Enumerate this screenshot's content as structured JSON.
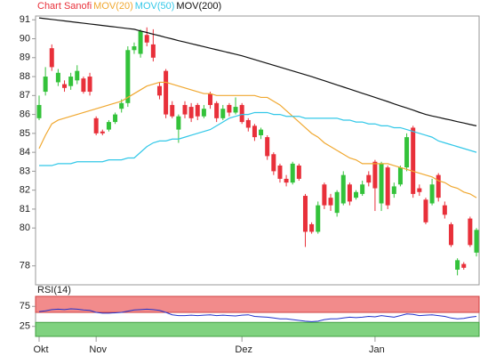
{
  "chart_data": {
    "type": "candlestick",
    "title": "Chart Sanofi",
    "categories": [
      "Okt",
      null,
      null,
      null,
      null,
      null,
      null,
      null,
      null,
      "Nov",
      null,
      null,
      null,
      null,
      null,
      null,
      null,
      null,
      null,
      null,
      null,
      null,
      null,
      null,
      null,
      null,
      null,
      null,
      null,
      null,
      null,
      null,
      "Dez",
      null,
      null,
      null,
      null,
      null,
      null,
      null,
      null,
      null,
      null,
      null,
      null,
      null,
      null,
      null,
      null,
      null,
      null,
      null,
      null,
      "Jan",
      null,
      null,
      null,
      null,
      null,
      null,
      null,
      null,
      null,
      null,
      null,
      null,
      null,
      null,
      null,
      null
    ],
    "open": [
      85.8,
      87.2,
      89.5,
      87.7,
      87.6,
      87.5,
      87.8,
      87.9,
      88,
      85.8,
      85.1,
      85.2,
      85.6,
      86.3,
      86.6,
      89.4,
      89.2,
      90.2,
      89.7,
      87.5,
      88.3,
      86.5,
      85.2,
      86.5,
      86.4,
      86.5,
      85.9,
      87.1,
      86.6,
      85.8,
      86.5,
      86.1,
      86.5,
      85.7,
      85.4,
      84.9,
      84.8,
      83.9,
      83.3,
      82.6,
      82.4,
      83.3,
      81.7,
      80.2,
      79.8,
      82.3,
      81.6,
      80.8,
      81.3,
      82.3,
      81.6,
      81.8,
      82.8,
      83.5,
      81.3,
      83.2,
      81.8,
      82.3,
      83.2,
      85.3,
      82.1,
      81.5,
      81.3,
      82.8,
      81.2,
      80.2,
      77.8,
      78.1,
      80.5,
      78.7
    ],
    "high": [
      87,
      88.5,
      89.7,
      88.4,
      87.8,
      88.2,
      88.6,
      88,
      88.2,
      85.9,
      85.2,
      85.7,
      86.1,
      86.8,
      89.6,
      89.8,
      90.5,
      90.6,
      90.5,
      87.7,
      88.4,
      86.7,
      86,
      86.7,
      86.6,
      86.6,
      86.5,
      87.2,
      86.7,
      86.5,
      86.6,
      86.9,
      86.6,
      85.8,
      85.5,
      85.3,
      84.9,
      84,
      83.4,
      82.8,
      83.5,
      83.4,
      81.8,
      80.3,
      81.4,
      82.4,
      81.8,
      82,
      83,
      82.4,
      82,
      82.5,
      83,
      83.6,
      83.5,
      83.3,
      82.4,
      83.3,
      85,
      85.4,
      82.3,
      81.6,
      82.6,
      82.9,
      81.4,
      80.3,
      78.4,
      78.2,
      80.6,
      80
    ],
    "low": [
      85.7,
      87,
      88.3,
      87.5,
      87.2,
      87.3,
      87.6,
      87.1,
      87,
      84.9,
      84.9,
      85.1,
      85.5,
      86.1,
      86.4,
      89.2,
      89,
      89.6,
      88.8,
      86.8,
      85.8,
      85.8,
      84.5,
      85.8,
      85.6,
      85.7,
      85.8,
      86.3,
      85.6,
      85.7,
      85.9,
      86,
      85.5,
      85.1,
      84.6,
      84.7,
      83.6,
      82.8,
      82.4,
      82.2,
      82.3,
      82.5,
      79,
      79.7,
      79.7,
      81,
      80.9,
      80.6,
      81.2,
      81.2,
      81.5,
      81.7,
      82.2,
      80.9,
      80.9,
      81,
      81.6,
      82.2,
      83,
      81.6,
      81.7,
      80.2,
      81.2,
      81.4,
      80.5,
      79,
      77.5,
      77.8,
      79,
      78.5
    ],
    "close": [
      86.5,
      88,
      88.5,
      88.2,
      87.4,
      88,
      88.3,
      87.2,
      87.2,
      85,
      85,
      85.6,
      86,
      86.6,
      89.4,
      89.6,
      90.4,
      89.8,
      89,
      87,
      86,
      85.9,
      85.9,
      86,
      85.8,
      85.9,
      86.3,
      86.5,
      85.8,
      86.3,
      86.1,
      86.4,
      85.6,
      85.3,
      84.8,
      85.2,
      83.8,
      83,
      82.6,
      82.4,
      83.4,
      82.6,
      79.8,
      79.8,
      81.2,
      81.2,
      81.2,
      81.9,
      82.8,
      81.4,
      81.9,
      82.3,
      82.4,
      82.1,
      83.4,
      81.2,
      82.2,
      83.2,
      84.8,
      81.8,
      81.9,
      80.3,
      82.3,
      81.6,
      80.7,
      79.1,
      78.3,
      77.9,
      79.1,
      79.9
    ],
    "up_color": "#33c23a",
    "down_color": "#e8303a",
    "series": [
      {
        "name": "MOV(20)",
        "color": "#f0a830",
        "values": [
          84.2,
          84.9,
          85.5,
          85.7,
          85.8,
          85.9,
          86.0,
          86.1,
          86.2,
          86.3,
          86.4,
          86.5,
          86.6,
          86.7,
          86.9,
          87.1,
          87.3,
          87.5,
          87.6,
          87.7,
          87.7,
          87.6,
          87.5,
          87.4,
          87.3,
          87.2,
          87.1,
          87.1,
          87.0,
          87.0,
          87.0,
          87.0,
          87.0,
          87.0,
          87.0,
          86.9,
          86.9,
          86.7,
          86.5,
          86.2,
          85.9,
          85.6,
          85.3,
          85.0,
          84.8,
          84.5,
          84.3,
          84.1,
          83.9,
          83.7,
          83.6,
          83.4,
          83.4,
          83.4,
          83.4,
          83.4,
          83.3,
          83.2,
          83.1,
          83.0,
          82.9,
          82.8,
          82.7,
          82.5,
          82.4,
          82.2,
          82.1,
          81.9,
          81.8,
          81.6
        ]
      },
      {
        "name": "MOV(50)",
        "color": "#33c8e8",
        "values": [
          83.3,
          83.3,
          83.3,
          83.4,
          83.4,
          83.4,
          83.5,
          83.5,
          83.5,
          83.5,
          83.5,
          83.6,
          83.6,
          83.6,
          83.7,
          83.7,
          84.0,
          84.3,
          84.5,
          84.6,
          84.6,
          84.7,
          84.7,
          84.8,
          84.9,
          85.0,
          85.1,
          85.2,
          85.4,
          85.6,
          85.8,
          85.9,
          86.0,
          86.0,
          86.1,
          86.1,
          86.1,
          86.0,
          86.0,
          85.9,
          85.9,
          85.9,
          85.8,
          85.8,
          85.8,
          85.8,
          85.8,
          85.8,
          85.7,
          85.7,
          85.6,
          85.6,
          85.5,
          85.5,
          85.4,
          85.4,
          85.3,
          85.3,
          85.2,
          85.1,
          85.0,
          84.9,
          84.8,
          84.6,
          84.5,
          84.4,
          84.3,
          84.2,
          84.1,
          84.0
        ]
      },
      {
        "name": "MOV(200)",
        "color": "#111111",
        "values": [
          91.1,
          91.06,
          91.02,
          90.98,
          90.94,
          90.9,
          90.86,
          90.82,
          90.78,
          90.74,
          90.7,
          90.66,
          90.62,
          90.58,
          90.54,
          90.5,
          90.41,
          90.33,
          90.24,
          90.16,
          90.07,
          89.99,
          89.9,
          89.82,
          89.74,
          89.66,
          89.58,
          89.5,
          89.42,
          89.34,
          89.26,
          89.18,
          89.1,
          89.0,
          88.9,
          88.8,
          88.7,
          88.6,
          88.5,
          88.4,
          88.3,
          88.2,
          88.1,
          88.0,
          87.89,
          87.78,
          87.67,
          87.56,
          87.45,
          87.34,
          87.23,
          87.12,
          87.01,
          86.9,
          86.79,
          86.68,
          86.56,
          86.45,
          86.34,
          86.23,
          86.11,
          86.0,
          85.92,
          85.85,
          85.77,
          85.7,
          85.62,
          85.55,
          85.47,
          85.4
        ]
      }
    ],
    "ylim": [
      77,
      91.2
    ],
    "yticks": [
      91,
      90,
      89,
      88,
      87,
      86,
      85,
      84,
      83,
      82,
      81,
      80,
      78
    ],
    "rsi": {
      "label": "RSI(14)",
      "color": "#2233cc",
      "values": [
        62,
        64,
        67,
        68,
        67,
        69,
        68,
        66,
        65,
        60,
        58,
        58,
        59,
        60,
        63,
        66,
        67,
        68,
        67,
        65,
        60,
        54,
        52,
        52,
        53,
        52,
        53,
        54,
        52,
        53,
        52,
        51,
        53,
        54,
        50,
        49,
        48,
        46,
        44,
        44,
        42,
        40,
        38,
        37,
        38,
        42,
        44,
        44,
        46,
        48,
        47,
        48,
        50,
        49,
        52,
        50,
        48,
        52,
        56,
        55,
        52,
        53,
        54,
        52,
        50,
        46,
        44,
        45,
        48,
        50
      ],
      "ylim": [
        0,
        100
      ],
      "yticks": [
        75,
        25
      ],
      "upper_band": [
        60,
        100
      ],
      "lower_band": [
        0,
        35
      ],
      "upper_color": "#f28b8b",
      "lower_color": "#7fd27f"
    }
  }
}
